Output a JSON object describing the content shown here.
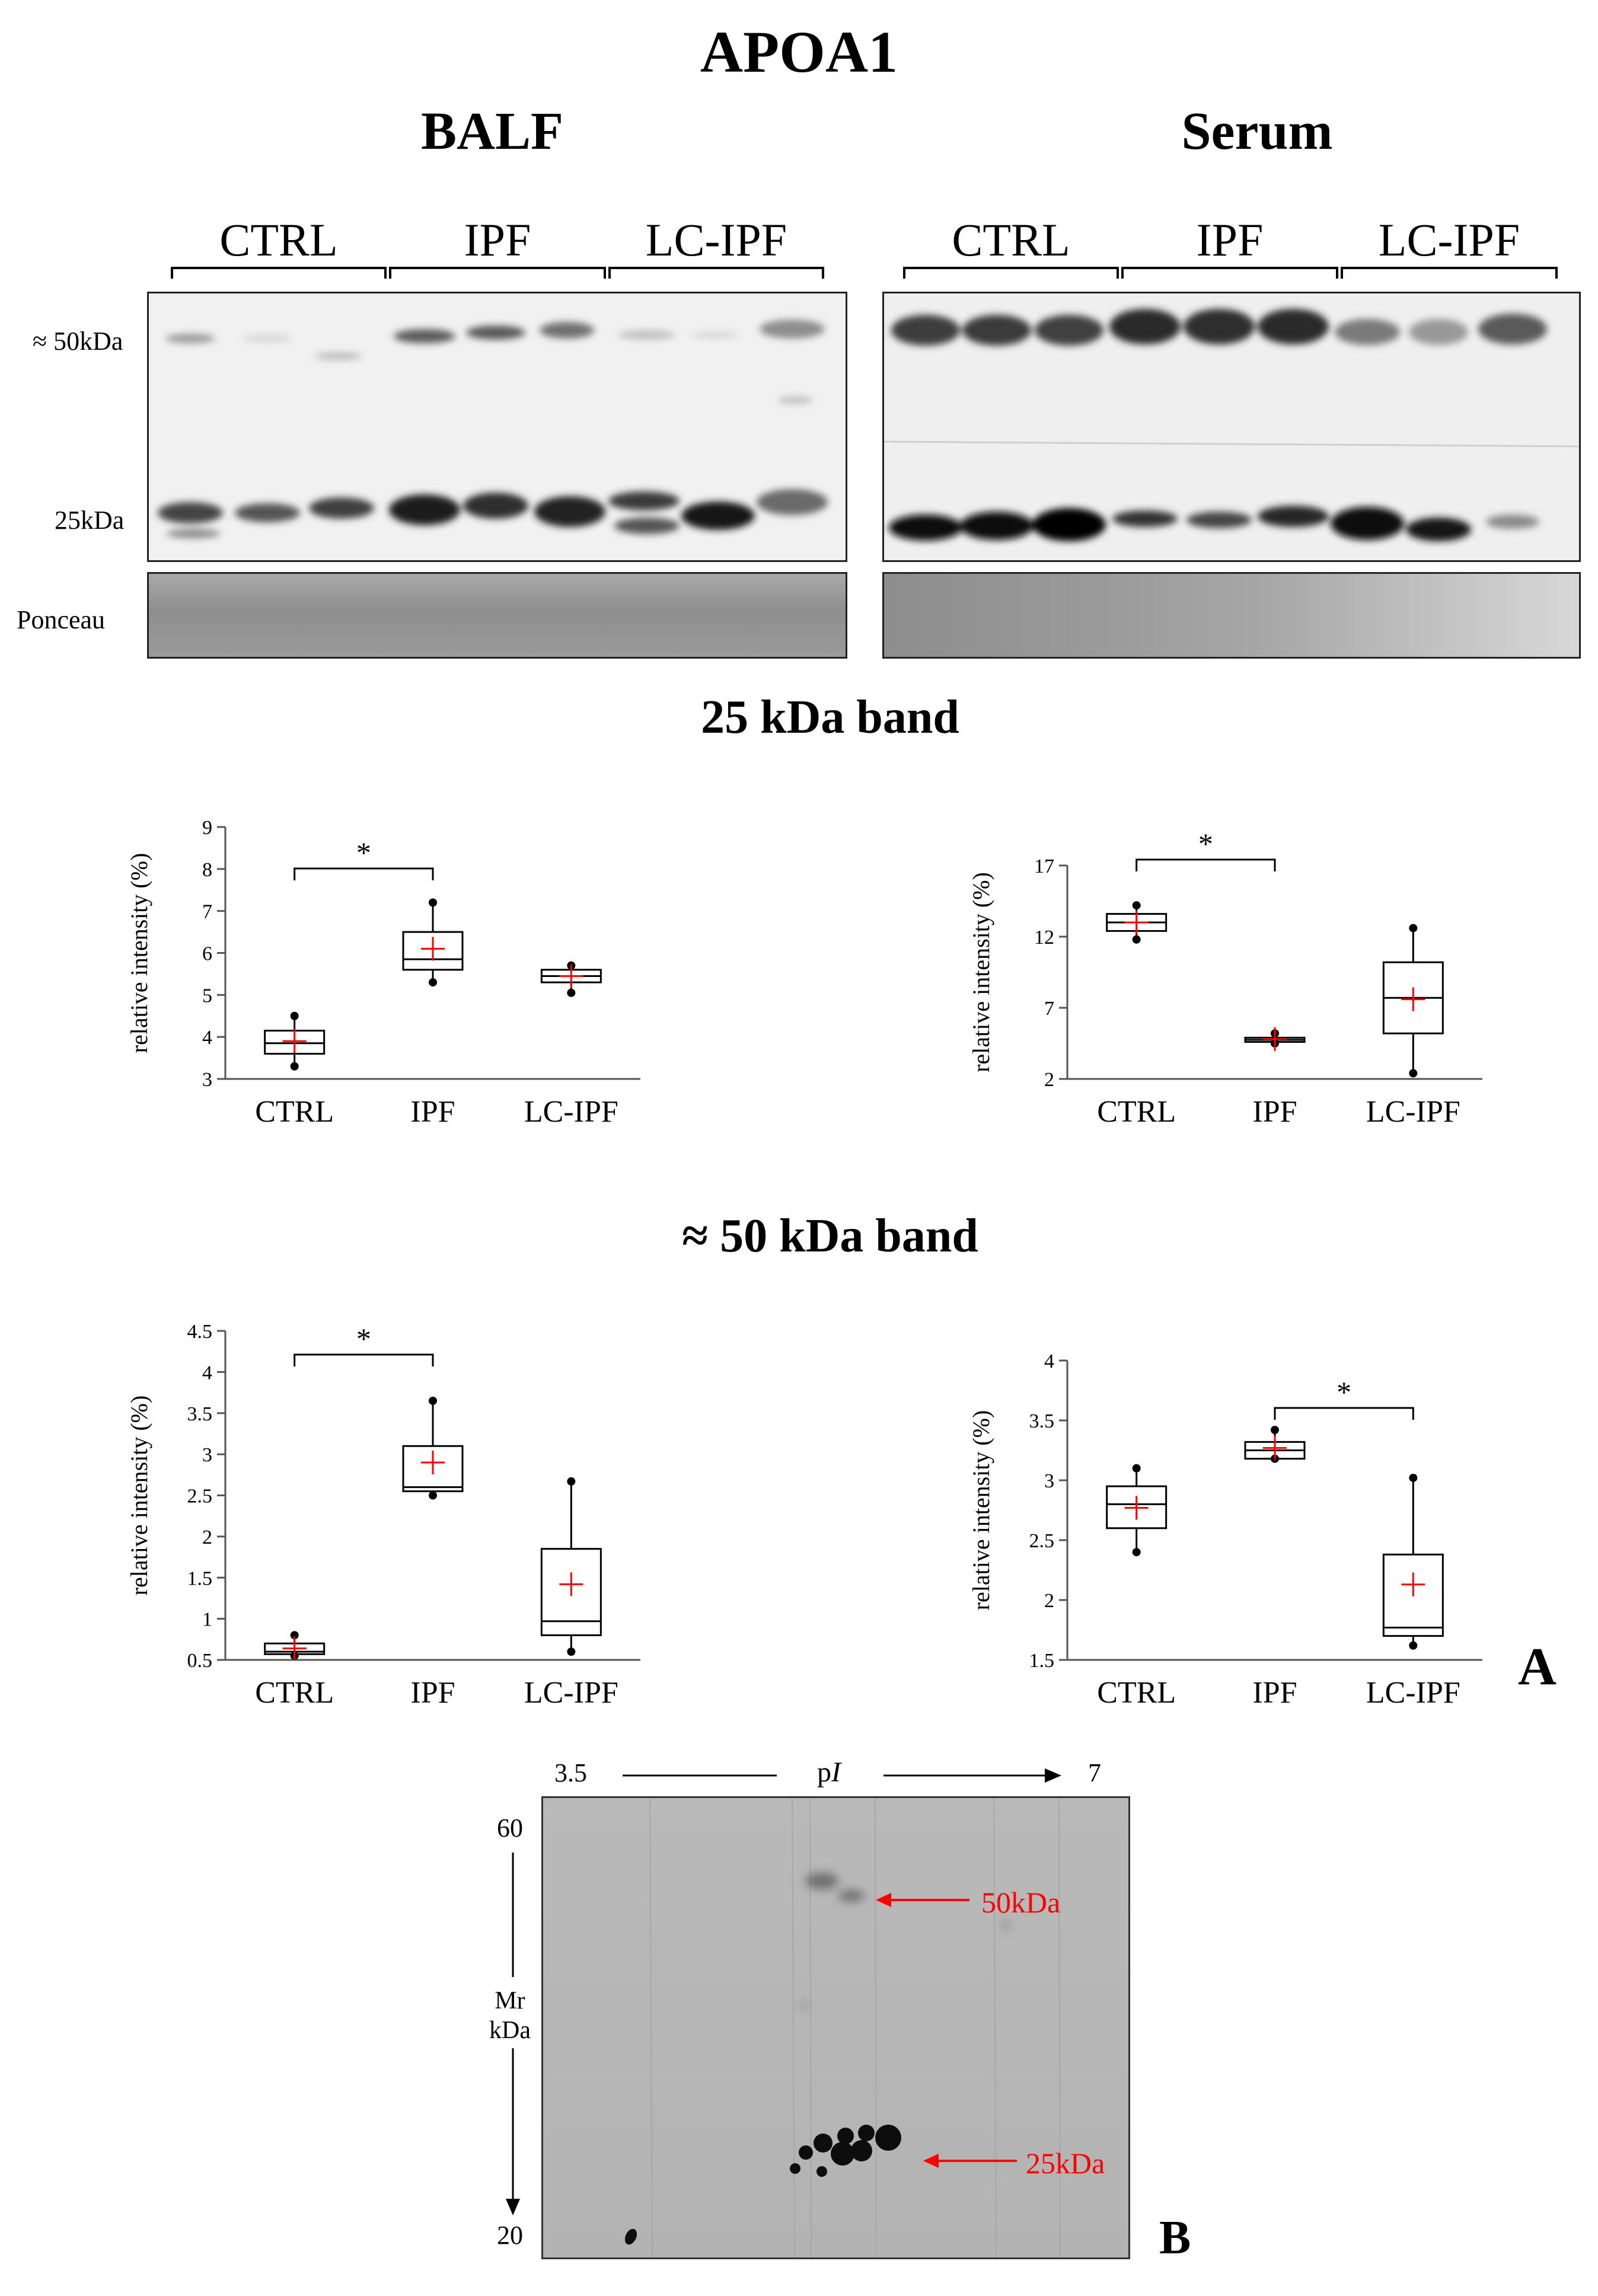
{
  "figure": {
    "main_title": "APOA1",
    "balf_title": "BALF",
    "serum_title": "Serum",
    "group_labels": [
      "CTRL",
      "IPF",
      "LC-IPF"
    ],
    "mw_50": "≈ 50kDa",
    "mw_25": "25kDa",
    "ponceau": "Ponceau",
    "section_25": "25 kDa band",
    "section_50": "≈ 50 kDa band",
    "panel_a": "A",
    "panel_b": "B",
    "significance": "*"
  },
  "gel2d": {
    "pi_label_p": "p",
    "pi_label_i": "I",
    "pi_start": "3.5",
    "pi_end": "7",
    "mr_top": "60",
    "mr_bottom": "20",
    "mr_label_1": "Mr",
    "mr_label_2": "kDa",
    "arrow_50": "50kDa",
    "arrow_25": "25kDa",
    "arrow_color": "#ff0000"
  },
  "chart_data": [
    {
      "type": "box",
      "panel": "BALF 25 kDa band",
      "ylabel": "relative intensity  (%)",
      "ylim": [
        3,
        9
      ],
      "yticks": [
        3,
        4,
        5,
        6,
        7,
        8,
        9
      ],
      "categories": [
        "CTRL",
        "IPF",
        "LC-IPF"
      ],
      "boxes": [
        {
          "min": 3.3,
          "q1": 3.6,
          "median": 3.85,
          "q3": 4.15,
          "max": 4.5,
          "mean": 3.9
        },
        {
          "min": 5.3,
          "q1": 5.6,
          "median": 5.85,
          "q3": 6.5,
          "max": 7.2,
          "mean": 6.1
        },
        {
          "min": 5.05,
          "q1": 5.3,
          "median": 5.45,
          "q3": 5.6,
          "max": 5.7,
          "mean": 5.45
        }
      ],
      "significance": [
        {
          "from": "CTRL",
          "to": "IPF",
          "label": "*"
        }
      ]
    },
    {
      "type": "box",
      "panel": "Serum 25 kDa band",
      "ylabel": "relative intensity  (%)",
      "ylim": [
        2,
        17
      ],
      "yticks": [
        2,
        7,
        12,
        17
      ],
      "categories": [
        "CTRL",
        "IPF",
        "LC-IPF"
      ],
      "boxes": [
        {
          "min": 11.8,
          "q1": 12.4,
          "median": 13.0,
          "q3": 13.6,
          "max": 14.2,
          "mean": 13.0
        },
        {
          "min": 4.5,
          "q1": 4.6,
          "median": 4.75,
          "q3": 4.9,
          "max": 5.2,
          "mean": 4.8
        },
        {
          "min": 2.4,
          "q1": 5.2,
          "median": 7.7,
          "q3": 10.2,
          "max": 12.6,
          "mean": 7.6
        }
      ],
      "significance": [
        {
          "from": "CTRL",
          "to": "IPF",
          "label": "*"
        }
      ]
    },
    {
      "type": "box",
      "panel": "BALF ≈ 50 kDa band",
      "ylabel": "relative intensity  (%)",
      "ylim": [
        0.5,
        4.5
      ],
      "yticks": [
        0.5,
        1,
        1.5,
        2,
        2.5,
        3,
        3.5,
        4,
        4.5
      ],
      "categories": [
        "CTRL",
        "IPF",
        "LC-IPF"
      ],
      "boxes": [
        {
          "min": 0.55,
          "q1": 0.57,
          "median": 0.6,
          "q3": 0.7,
          "max": 0.8,
          "mean": 0.64
        },
        {
          "min": 2.5,
          "q1": 2.55,
          "median": 2.6,
          "q3": 3.1,
          "max": 3.65,
          "mean": 2.9
        },
        {
          "min": 0.6,
          "q1": 0.8,
          "median": 0.97,
          "q3": 1.85,
          "max": 2.67,
          "mean": 1.42
        }
      ],
      "significance": [
        {
          "from": "CTRL",
          "to": "IPF",
          "label": "*"
        }
      ]
    },
    {
      "type": "box",
      "panel": "Serum ≈ 50 kDa band",
      "ylabel": "relative intensity  (%)",
      "ylim": [
        1.5,
        4
      ],
      "yticks": [
        1.5,
        2,
        2.5,
        3,
        3.5,
        4
      ],
      "categories": [
        "CTRL",
        "IPF",
        "LC-IPF"
      ],
      "boxes": [
        {
          "min": 2.4,
          "q1": 2.6,
          "median": 2.8,
          "q3": 2.95,
          "max": 3.1,
          "mean": 2.77
        },
        {
          "min": 3.18,
          "q1": 3.18,
          "median": 3.25,
          "q3": 3.32,
          "max": 3.42,
          "mean": 3.27
        },
        {
          "min": 1.62,
          "q1": 1.7,
          "median": 1.77,
          "q3": 2.38,
          "max": 3.02,
          "mean": 2.13
        }
      ],
      "significance": [
        {
          "from": "IPF",
          "to": "LC-IPF",
          "label": "*"
        }
      ]
    }
  ]
}
